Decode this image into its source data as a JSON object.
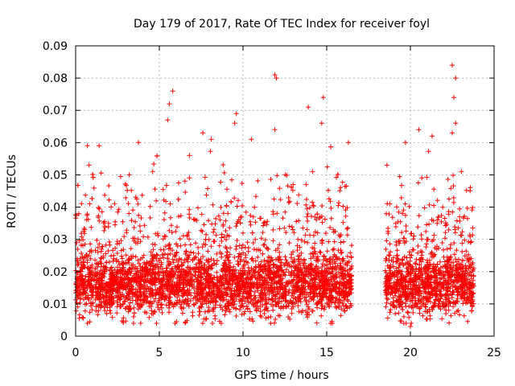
{
  "chart_data": {
    "type": "scatter",
    "title": "Day 179 of 2017, Rate Of TEC Index for receiver foyl",
    "xlabel": "GPS time / hours",
    "ylabel": "ROTI / TECUs",
    "xlim": [
      0,
      25
    ],
    "ylim": [
      0,
      0.09
    ],
    "x_ticks": [
      0,
      5,
      10,
      15,
      20,
      25
    ],
    "y_ticks": [
      0,
      0.01,
      0.02,
      0.03,
      0.04,
      0.05,
      0.06,
      0.07,
      0.08,
      0.09
    ],
    "x_tick_labels": [
      "0",
      "5",
      "10",
      "15",
      "20",
      "25"
    ],
    "y_tick_labels": [
      "0",
      "0.01",
      "0.02",
      "0.03",
      "0.04",
      "0.05",
      "0.06",
      "0.07",
      "0.08",
      "0.09"
    ],
    "grid": true,
    "marker": "+",
    "color": "#ff0000",
    "data_segments": [
      {
        "x_start": 0.0,
        "x_end": 16.5
      },
      {
        "x_start": 18.5,
        "x_end": 23.8
      }
    ],
    "typical_range": [
      0.01,
      0.025
    ],
    "outliers": [
      {
        "x": 0.7,
        "y": 0.059
      },
      {
        "x": 1.4,
        "y": 0.059
      },
      {
        "x": 0.8,
        "y": 0.053
      },
      {
        "x": 5.6,
        "y": 0.072
      },
      {
        "x": 5.8,
        "y": 0.076
      },
      {
        "x": 5.5,
        "y": 0.067
      },
      {
        "x": 7.6,
        "y": 0.063
      },
      {
        "x": 8.1,
        "y": 0.061
      },
      {
        "x": 9.6,
        "y": 0.069
      },
      {
        "x": 9.5,
        "y": 0.066
      },
      {
        "x": 10.5,
        "y": 0.061
      },
      {
        "x": 11.9,
        "y": 0.081
      },
      {
        "x": 12.0,
        "y": 0.08
      },
      {
        "x": 11.9,
        "y": 0.064
      },
      {
        "x": 13.9,
        "y": 0.071
      },
      {
        "x": 14.8,
        "y": 0.074
      },
      {
        "x": 14.7,
        "y": 0.066
      },
      {
        "x": 16.3,
        "y": 0.06
      },
      {
        "x": 18.6,
        "y": 0.053
      },
      {
        "x": 20.0,
        "y": 0.003
      },
      {
        "x": 20.5,
        "y": 0.064
      },
      {
        "x": 21.3,
        "y": 0.062
      },
      {
        "x": 22.5,
        "y": 0.084
      },
      {
        "x": 22.7,
        "y": 0.08
      },
      {
        "x": 22.6,
        "y": 0.074
      },
      {
        "x": 22.7,
        "y": 0.066
      },
      {
        "x": 22.5,
        "y": 0.063
      },
      {
        "x": 3.2,
        "y": 0.05
      },
      {
        "x": 4.6,
        "y": 0.051
      },
      {
        "x": 6.8,
        "y": 0.056
      }
    ]
  }
}
